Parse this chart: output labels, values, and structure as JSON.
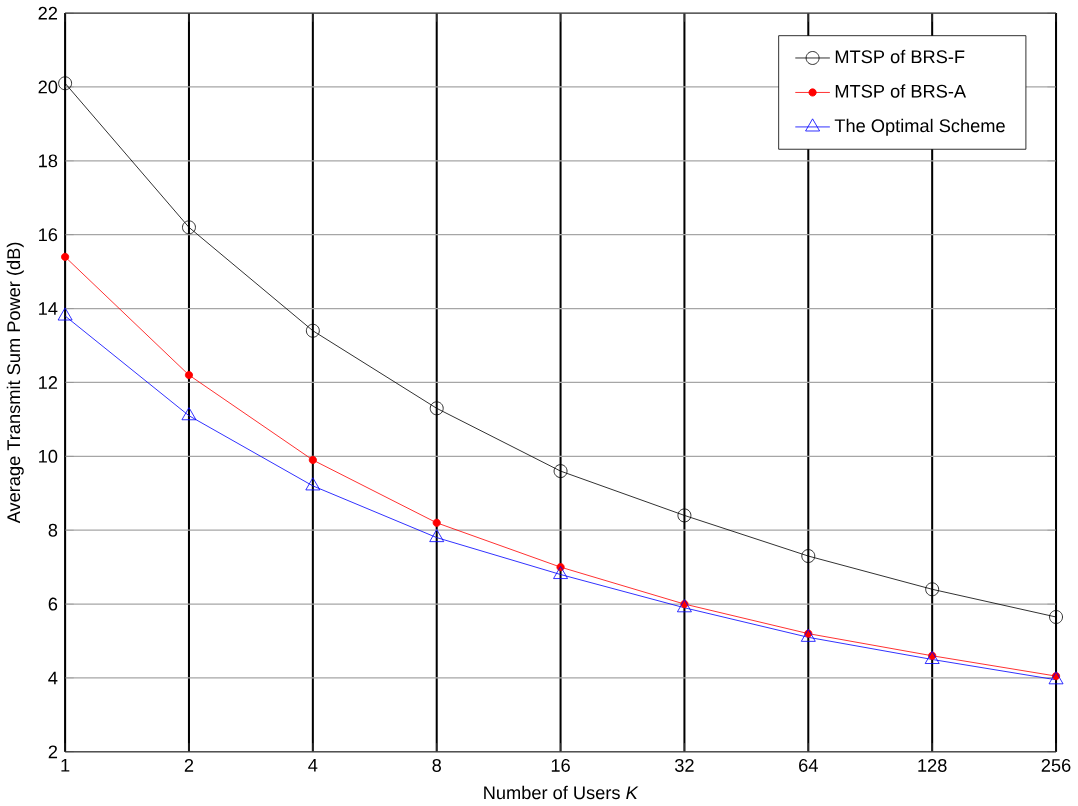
{
  "chart_data": {
    "type": "line",
    "xlabel": "Number of Users *K*",
    "ylabel": "Average Transmit Sum Power (dB)",
    "x": [
      1,
      2,
      4,
      8,
      16,
      32,
      64,
      128,
      256
    ],
    "series": [
      {
        "name": "MTSP of BRS-F",
        "color": "#000000",
        "marker": "circle",
        "values": [
          20.1,
          16.2,
          13.4,
          11.3,
          9.6,
          8.4,
          7.3,
          6.4,
          5.65
        ]
      },
      {
        "name": "MTSP of BRS-A",
        "color": "#ff0000",
        "marker": "dot",
        "values": [
          15.4,
          12.2,
          9.9,
          8.2,
          7.0,
          6.0,
          5.2,
          4.6,
          4.05
        ]
      },
      {
        "name": "The Optimal Scheme",
        "color": "#0000ff",
        "marker": "triangle",
        "values": [
          13.8,
          11.1,
          9.2,
          7.8,
          6.8,
          5.9,
          5.1,
          4.5,
          3.95
        ]
      }
    ],
    "log": "x",
    "xlim": [
      1,
      256
    ],
    "ylim": [
      2,
      22
    ],
    "xticks": [
      1,
      2,
      4,
      8,
      16,
      32,
      64,
      128,
      256
    ],
    "yticks": [
      2,
      4,
      6,
      8,
      10,
      12,
      14,
      16,
      18,
      20,
      22
    ],
    "grid": true,
    "legend": "top right",
    "line_style": "solid"
  }
}
